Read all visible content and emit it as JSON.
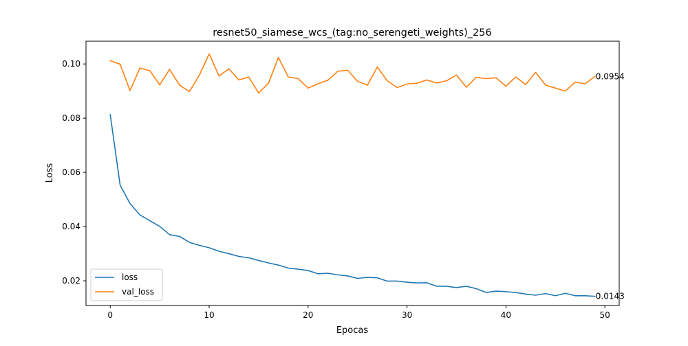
{
  "chart_data": {
    "type": "line",
    "title": "resnet50_siamese_wcs_(tag:no_serengeti_weights)_256",
    "xlabel": "Epocas",
    "ylabel": "Loss",
    "xlim": [
      -2.45,
      51.45
    ],
    "ylim": [
      0.0109,
      0.1084
    ],
    "xticks": [
      0,
      10,
      20,
      30,
      40,
      50
    ],
    "xtick_labels": [
      "0",
      "10",
      "20",
      "30",
      "40",
      "50"
    ],
    "yticks": [
      0.02,
      0.04,
      0.06,
      0.08,
      0.1
    ],
    "ytick_labels": [
      "0.02",
      "0.04",
      "0.06",
      "0.08",
      "0.10"
    ],
    "grid": false,
    "legend_position": "lower-left",
    "x": [
      0,
      1,
      2,
      3,
      4,
      5,
      6,
      7,
      8,
      9,
      10,
      11,
      12,
      13,
      14,
      15,
      16,
      17,
      18,
      19,
      20,
      21,
      22,
      23,
      24,
      25,
      26,
      27,
      28,
      29,
      30,
      31,
      32,
      33,
      34,
      35,
      36,
      37,
      38,
      39,
      40,
      41,
      42,
      43,
      44,
      45,
      46,
      47,
      48,
      49
    ],
    "series": [
      {
        "name": "loss",
        "color": "#1f77b4",
        "values": [
          0.0813,
          0.0553,
          0.0485,
          0.0443,
          0.0422,
          0.0401,
          0.037,
          0.0364,
          0.0342,
          0.0331,
          0.0322,
          0.0309,
          0.03,
          0.029,
          0.0285,
          0.0275,
          0.0266,
          0.0258,
          0.0247,
          0.0243,
          0.0238,
          0.0226,
          0.0228,
          0.0222,
          0.0218,
          0.0209,
          0.0213,
          0.0211,
          0.0199,
          0.0199,
          0.0195,
          0.0192,
          0.0193,
          0.018,
          0.018,
          0.0175,
          0.018,
          0.0171,
          0.0157,
          0.0162,
          0.016,
          0.0157,
          0.0151,
          0.0147,
          0.0153,
          0.0145,
          0.0154,
          0.0145,
          0.0145,
          0.0143
        ],
        "end_label": "0.0143"
      },
      {
        "name": "val_loss",
        "color": "#ff7f0e",
        "values": [
          0.1012,
          0.0999,
          0.0902,
          0.0985,
          0.0975,
          0.0923,
          0.098,
          0.0922,
          0.0898,
          0.0958,
          0.1037,
          0.0956,
          0.0982,
          0.0941,
          0.0952,
          0.0893,
          0.0929,
          0.1024,
          0.0952,
          0.0946,
          0.0911,
          0.0927,
          0.094,
          0.0973,
          0.0977,
          0.0936,
          0.0922,
          0.0989,
          0.0938,
          0.0913,
          0.0926,
          0.0929,
          0.0941,
          0.093,
          0.0938,
          0.0959,
          0.0914,
          0.0951,
          0.0946,
          0.0949,
          0.0918,
          0.0952,
          0.0924,
          0.0969,
          0.0922,
          0.0911,
          0.09,
          0.0933,
          0.0927,
          0.0954
        ],
        "end_label": "0.0954"
      }
    ]
  }
}
